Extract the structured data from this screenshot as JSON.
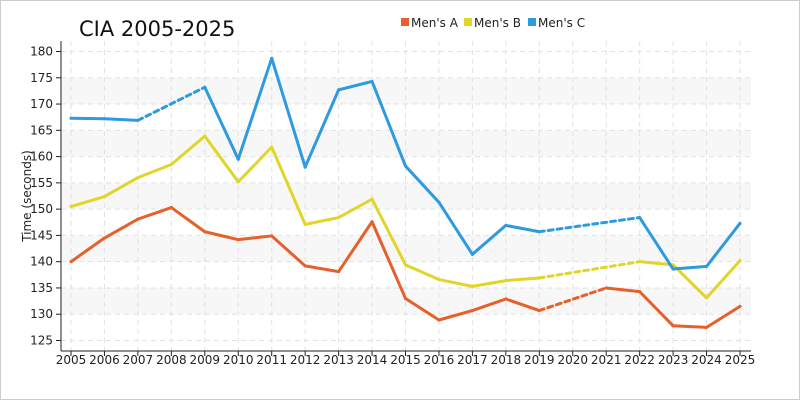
{
  "chart_data": {
    "type": "line",
    "title": "CIA 2005-2025",
    "xlabel": "",
    "ylabel": "Time (seconds)",
    "ylim": [
      123,
      182
    ],
    "yticks": [
      125,
      130,
      135,
      140,
      145,
      150,
      155,
      160,
      165,
      170,
      175,
      180
    ],
    "grid": true,
    "legend": "top",
    "x": [
      2005,
      2006,
      2007,
      2008,
      2009,
      2010,
      2011,
      2012,
      2013,
      2014,
      2015,
      2016,
      2017,
      2018,
      2019,
      2020,
      2021,
      2022,
      2023,
      2024,
      2025
    ],
    "series": [
      {
        "name": "Men's A",
        "color": "#e5602b",
        "values": [
          140.0,
          144.5,
          148.1,
          150.3,
          145.7,
          144.2,
          144.9,
          139.2,
          138.1,
          147.6,
          133.0,
          128.9,
          130.7,
          132.9,
          130.7,
          null,
          135.0,
          134.3,
          127.8,
          127.5,
          131.5
        ]
      },
      {
        "name": "Men's B",
        "color": "#e2d52a",
        "values": [
          150.5,
          152.4,
          156.0,
          158.5,
          163.9,
          155.2,
          161.8,
          147.1,
          148.4,
          151.9,
          139.4,
          136.6,
          135.3,
          136.4,
          136.9,
          null,
          null,
          140.0,
          139.4,
          133.1,
          140.2
        ]
      },
      {
        "name": "Men's C",
        "color": "#2e9be0",
        "values": [
          167.3,
          167.2,
          166.9,
          null,
          173.2,
          159.5,
          178.7,
          158.0,
          172.7,
          174.3,
          158.2,
          151.3,
          141.4,
          146.9,
          145.7,
          null,
          null,
          148.4,
          138.6,
          139.1,
          147.3
        ]
      }
    ]
  }
}
